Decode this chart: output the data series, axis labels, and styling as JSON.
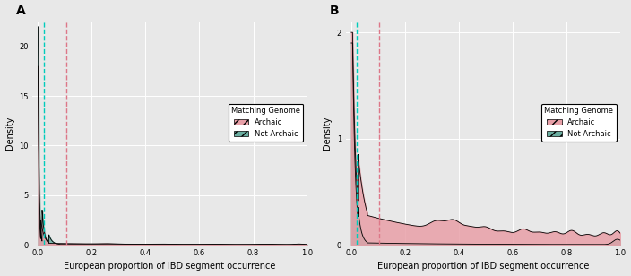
{
  "panel_A": {
    "label": "A",
    "cyan_vline_x": 0.022,
    "pink_vline_x": 0.105,
    "xlim": [
      -0.02,
      1.0
    ],
    "ylim": [
      0,
      22.5
    ],
    "yticks": [
      0,
      5,
      10,
      15,
      20
    ],
    "xticks": [
      0.0,
      0.2,
      0.4,
      0.6,
      0.8,
      1.0
    ]
  },
  "panel_B": {
    "label": "B",
    "cyan_vline_x": 0.022,
    "pink_vline_x": 0.105,
    "xlim": [
      -0.02,
      1.0
    ],
    "ylim": [
      0,
      2.1
    ],
    "yticks": [
      0,
      1,
      2
    ],
    "xticks": [
      0.0,
      0.2,
      0.4,
      0.6,
      0.8,
      1.0
    ]
  },
  "archaic_fill_color": "#e8a0a8",
  "not_archaic_fill_color": "#6aada0",
  "archaic_line_color": "#000000",
  "not_archaic_line_color": "#000000",
  "cyan_vline_color": "#00ccbb",
  "pink_vline_color": "#dd7788",
  "bg_color": "#e8e8e8",
  "grid_color": "#ffffff",
  "legend_title": "Matching Genome",
  "legend_archaic": "Archaic",
  "legend_not_archaic": "Not Archaic",
  "xlabel": "European proportion of IBD segment occurrence",
  "ylabel": "Density",
  "label_fontsize": 7,
  "tick_fontsize": 6,
  "legend_fontsize": 6
}
